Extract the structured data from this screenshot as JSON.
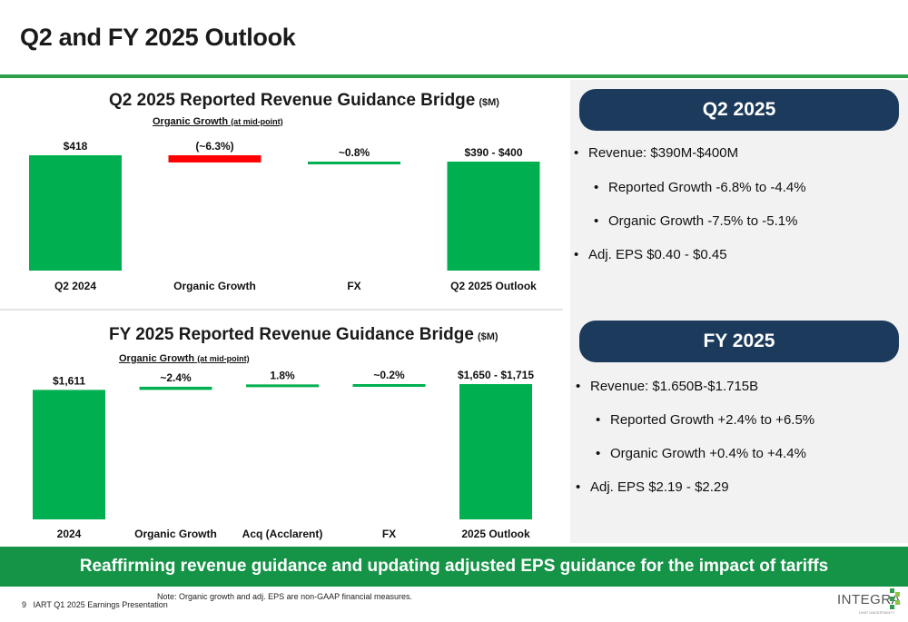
{
  "page": {
    "title": "Q2 and FY 2025 Outlook"
  },
  "colors": {
    "green": "#00b050",
    "red": "#ff0000",
    "navy": "#1b3a5c",
    "banner_green": "#159447"
  },
  "chart_data": [
    {
      "type": "bar",
      "subtype": "waterfall",
      "title": "Q2 2025 Reported Revenue Guidance Bridge",
      "unit": "($M)",
      "subtitle": "Organic Growth",
      "subtitle_note": "(at mid-point)",
      "categories": [
        "Q2 2024",
        "Organic Growth",
        "FX",
        "Q2 2025 Outlook"
      ],
      "labels": [
        "$418",
        "(~6.3%)",
        "~0.8%",
        "$390 - $400"
      ],
      "base_values": [
        0,
        392,
        392,
        0
      ],
      "top_values": [
        418,
        418,
        395,
        395
      ],
      "bar_colors": [
        "green",
        "red",
        "green",
        "green"
      ],
      "ylim": [
        0,
        418
      ]
    },
    {
      "type": "bar",
      "subtype": "waterfall",
      "title": "FY 2025 Reported Revenue Guidance Bridge",
      "unit": "($M)",
      "subtitle": "Organic Growth",
      "subtitle_note": "(at mid-point)",
      "categories": [
        "2024",
        "Organic Growth",
        "Acq (Acclarent)",
        "FX",
        "2025 Outlook"
      ],
      "labels": [
        "$1,611",
        "~2.4%",
        "1.8%",
        "~0.2%",
        "$1,650 - $1,715"
      ],
      "base_values": [
        0,
        1611,
        1650,
        1679,
        0
      ],
      "top_values": [
        1611,
        1650,
        1679,
        1683,
        1683
      ],
      "bar_colors": [
        "green",
        "green",
        "green",
        "green",
        "green"
      ],
      "ylim": [
        0,
        1683
      ]
    }
  ],
  "q2_panel": {
    "header": "Q2 2025",
    "bullets": [
      "Revenue: $390M-$400M",
      "Reported Growth -6.8% to -4.4%",
      "Organic Growth -7.5% to -5.1%",
      "Adj. EPS $0.40 - $0.45"
    ]
  },
  "fy_panel": {
    "header": "FY 2025",
    "bullets": [
      "Revenue: $1.650B-$1.715B",
      "Reported Growth +2.4% to +6.5%",
      "Organic Growth +0.4% to +4.4%",
      "Adj. EPS $2.19 - $2.29"
    ]
  },
  "banner": {
    "text": "Reaffirming revenue guidance and updating adjusted EPS guidance for the impact of tariffs"
  },
  "footer": {
    "page_number": "9",
    "presentation": "IART Q1 2025 Earnings Presentation",
    "note": "Note: Organic growth and adj. EPS are non-GAAP financial measures."
  },
  "logo": {
    "name": "INTEGRA",
    "tagline": "LIMIT UNCERTAINTY",
    "icon": "integra-logo-icon"
  }
}
